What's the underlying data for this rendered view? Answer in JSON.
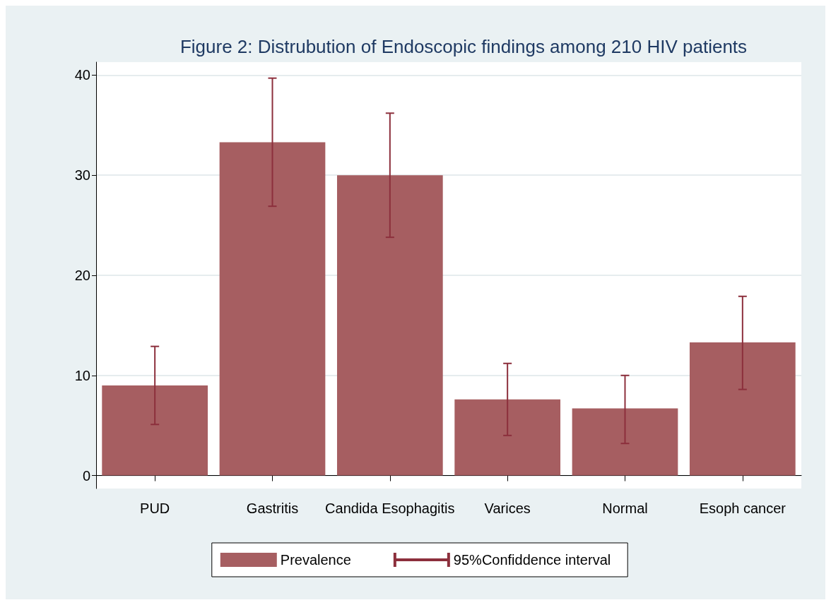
{
  "chart_data": {
    "type": "bar",
    "title": "Figure 2: Distrubution of Endoscopic findings among 210 HIV patients",
    "categories": [
      "PUD",
      "Gastritis",
      "Candida Esophagitis",
      "Varices",
      "Normal",
      "Esoph cancer"
    ],
    "series": [
      {
        "name": "Prevalence",
        "color": "#a65e61",
        "values": [
          9.0,
          33.3,
          30.0,
          7.6,
          6.7,
          13.3
        ],
        "errors": [
          [
            5.1,
            12.9
          ],
          [
            26.9,
            39.7
          ],
          [
            23.8,
            36.2
          ],
          [
            4.0,
            11.2
          ],
          [
            3.2,
            10.0
          ],
          [
            8.6,
            17.9
          ]
        ]
      }
    ],
    "annotations": [
      "95%Confiddence interval"
    ],
    "ylim": [
      -1.3,
      41.3
    ],
    "yticks": [
      0,
      10,
      20,
      30,
      40
    ],
    "grid": "y",
    "legend": "bottom"
  }
}
